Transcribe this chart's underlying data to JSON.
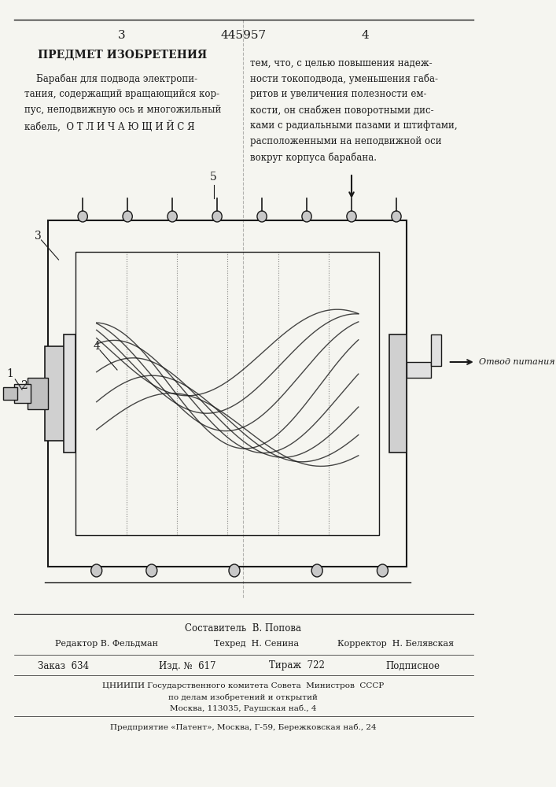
{
  "patent_number": "445957",
  "page_left": "3",
  "page_right": "4",
  "title_left": "ПРЕДМЕТ ИЗОБРЕТЕНИЯ",
  "text_left_1": "    Барабан для подвода электропи-",
  "text_left_2": "тания, содержащий вращающийся кор-",
  "text_left_3": "пус, неподвижную ось и многожильный",
  "text_left_4": "кабель,  О Т Л И Ч А Ю Щ И Й С Я",
  "text_right_1": "тем, что, с целью повышения надеж-",
  "text_right_2": "ности токоподвода, уменьшения габа-",
  "text_right_3": "ритов и увеличения полезности ем-",
  "text_right_4": "кости, он снабжен поворотными дис-",
  "text_right_5": "ками с радиальными пазами и штифтами,",
  "text_right_6": "расположенными на неподвижной оси",
  "text_right_7": "вокруг корпуса барабана.",
  "label_5": "5",
  "label_3": "3",
  "label_4": "4",
  "label_1": "1",
  "label_2": "2",
  "arrow_label": "Отвод питания",
  "footer_author": "Составитель  В. Попова",
  "footer_editor": "Редактор В. Фельдман",
  "footer_tech": "Техред  Н. Сенина",
  "footer_corrector": "Корректор  Н. Белявская",
  "footer_order": "Заказ  634",
  "footer_issue": "Изд. №  617",
  "footer_circulation": "Тираж  722",
  "footer_subscription": "Подписное",
  "footer_org1": "ЦНИИПИ Государственного комитета Совета  Министров  СССР",
  "footer_org2": "по делам изобретений и открытий",
  "footer_org3": "Москва, 113035, Раушская наб., 4",
  "footer_company": "Предприятие «Патент», Москва, Г-59, Бережковская наб., 24",
  "bg_color": "#f5f5f0",
  "line_color": "#1a1a1a"
}
